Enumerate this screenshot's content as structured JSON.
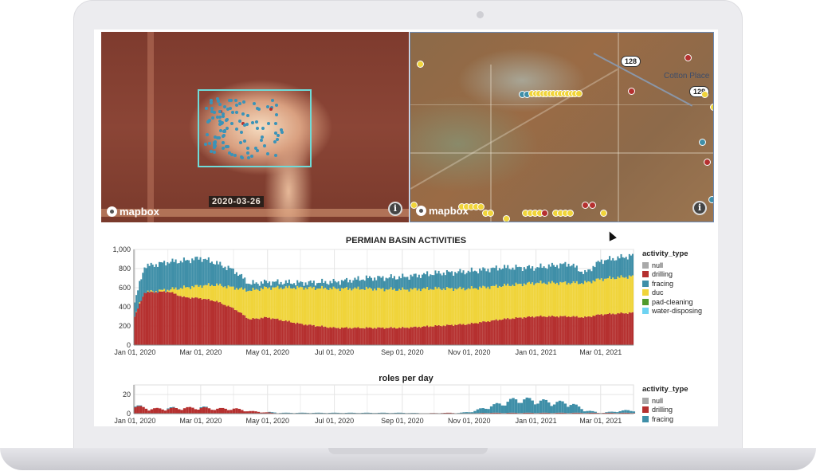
{
  "map_left": {
    "date_label": "2020-03-26",
    "attribution": "mapbox",
    "info": "i"
  },
  "map_right": {
    "shield_1": "128",
    "shield_2": "128",
    "place": "Cotton Place",
    "attribution": "mapbox",
    "info": "i"
  },
  "colors": {
    "null": "#a9a9a9",
    "drilling": "#b5302f",
    "fracing": "#3f8fa8",
    "duc": "#f0d43a",
    "pad-cleaning": "#4f9a2c",
    "water-disposing": "#6ed3f2"
  },
  "chart_data": [
    {
      "type": "area",
      "title": "PERMIAN BASIN ACTIVITIES",
      "stacked": true,
      "ylim": [
        0,
        1000
      ],
      "yticks": [
        "0",
        "200",
        "400",
        "600",
        "800",
        "1,000"
      ],
      "xticks": [
        "Jan 01, 2020",
        "Mar 01, 2020",
        "May 01, 2020",
        "Jul 01, 2020",
        "Sep 01, 2020",
        "Nov 01, 2020",
        "Jan 01, 2021",
        "Mar 01, 2021"
      ],
      "xrange": [
        "2020-01-01",
        "2021-04-01"
      ],
      "grid": true,
      "legend": {
        "title": "activity_type",
        "items": [
          "null",
          "drilling",
          "fracing",
          "duc",
          "pad-cleaning",
          "water-disposing"
        ],
        "placement": "right"
      },
      "x": [
        "2020-01-01",
        "2020-01-10",
        "2020-02-01",
        "2020-02-15",
        "2020-03-01",
        "2020-03-15",
        "2020-04-01",
        "2020-04-15",
        "2020-05-01",
        "2020-06-01",
        "2020-07-01",
        "2020-08-01",
        "2020-09-01",
        "2020-10-01",
        "2020-11-01",
        "2020-12-01",
        "2021-01-01",
        "2021-02-01",
        "2021-02-15",
        "2021-03-01",
        "2021-04-01"
      ],
      "series": [
        {
          "name": "drilling",
          "values": [
            300,
            550,
            560,
            500,
            490,
            460,
            380,
            270,
            290,
            220,
            180,
            180,
            180,
            200,
            220,
            270,
            300,
            300,
            290,
            320,
            340
          ]
        },
        {
          "name": "duc",
          "values": [
            0,
            0,
            20,
            100,
            130,
            170,
            220,
            300,
            310,
            380,
            410,
            410,
            400,
            390,
            370,
            350,
            350,
            350,
            360,
            370,
            380
          ]
        },
        {
          "name": "fracing",
          "values": [
            150,
            270,
            290,
            280,
            290,
            230,
            180,
            70,
            60,
            50,
            70,
            110,
            130,
            160,
            180,
            190,
            160,
            200,
            100,
            190,
            220
          ]
        }
      ]
    },
    {
      "type": "bar",
      "title": "roles per day",
      "stacked": true,
      "ylim": [
        0,
        30
      ],
      "yticks": [
        "0",
        "20"
      ],
      "xticks": [
        "Jan 01, 2020",
        "Mar 01, 2020",
        "May 01, 2020",
        "Jul 01, 2020",
        "Sep 01, 2020",
        "Nov 01, 2020",
        "Jan 01, 2021",
        "Mar 01, 2021"
      ],
      "xrange": [
        "2020-01-01",
        "2021-04-01"
      ],
      "legend": {
        "title": "activity_type",
        "items": [
          "null",
          "drilling",
          "fracing"
        ],
        "placement": "right"
      },
      "x": [
        "2020-01-01",
        "2020-01-15",
        "2020-02-01",
        "2020-02-15",
        "2020-03-01",
        "2020-03-15",
        "2020-04-01",
        "2020-04-15",
        "2020-05-15",
        "2020-06-15",
        "2020-09-01",
        "2020-10-15",
        "2020-11-01",
        "2020-11-15",
        "2020-12-01",
        "2020-12-15",
        "2021-01-01",
        "2021-01-15",
        "2021-02-01",
        "2021-02-15",
        "2021-03-01",
        "2021-03-25"
      ],
      "series": [
        {
          "name": "drilling",
          "values": [
            9,
            6,
            6,
            7,
            7,
            6,
            6,
            3,
            0,
            0,
            0,
            1,
            0,
            1,
            1,
            1,
            1,
            1,
            1,
            1,
            1,
            1
          ]
        },
        {
          "name": "fracing",
          "values": [
            1,
            0,
            1,
            0,
            1,
            0,
            0,
            0,
            1,
            1,
            1,
            0,
            2,
            6,
            12,
            17,
            15,
            13,
            12,
            3,
            0,
            3
          ]
        }
      ]
    }
  ]
}
